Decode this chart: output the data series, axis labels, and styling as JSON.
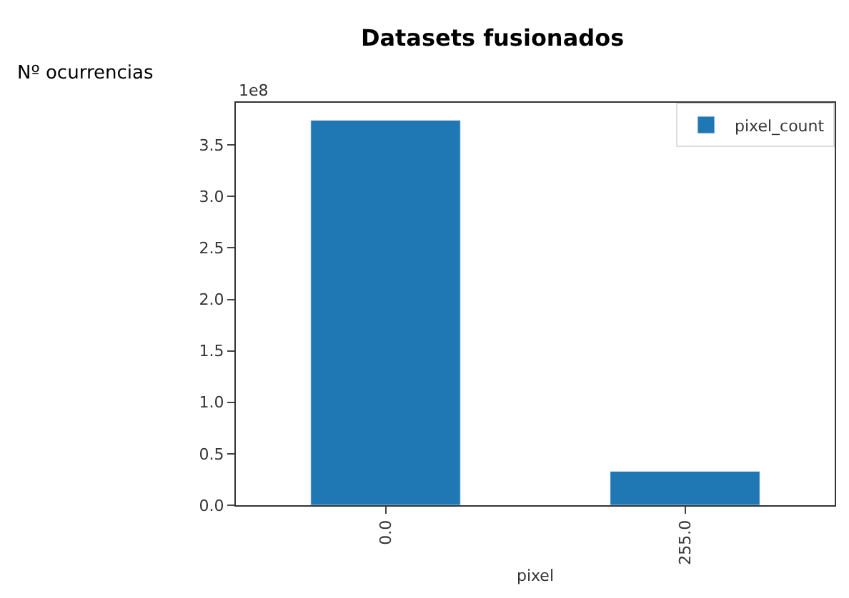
{
  "chart_data": {
    "type": "bar",
    "title": "Datasets fusionados",
    "ylabel": "Nº ocurrencias",
    "xlabel": "pixel",
    "categories": [
      "0.0",
      "255.0"
    ],
    "series": [
      {
        "name": "pixel_count",
        "color": "#1f77b4",
        "values": [
          3.74,
          0.33
        ]
      }
    ],
    "ylim": [
      0,
      3.91
    ],
    "yticks": [
      {
        "value": 0,
        "label": "0.0"
      },
      {
        "value": 0.5,
        "label": "0.5"
      },
      {
        "value": 1,
        "label": "1.0"
      },
      {
        "value": 1.5,
        "label": "1.5"
      },
      {
        "value": 2,
        "label": "2.0"
      },
      {
        "value": 2.5,
        "label": "2.5"
      },
      {
        "value": 3,
        "label": "3.0"
      },
      {
        "value": 3.5,
        "label": "3.5"
      }
    ],
    "annotations": [
      "1e8"
    ],
    "legend": "top right"
  }
}
